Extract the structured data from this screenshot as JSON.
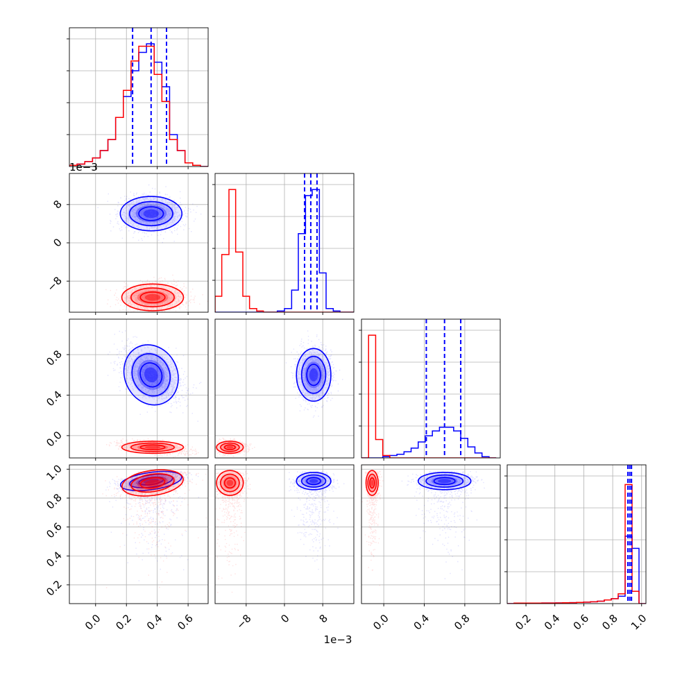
{
  "chart_data": {
    "type": "corner",
    "grid": true,
    "colors": {
      "series_a": "#0000ff",
      "series_b": "#ff0000",
      "quantiles": "#0000ff"
    },
    "parameters": [
      {
        "id": "p1",
        "range": [
          -0.00017,
          0.00073
        ]
      },
      {
        "id": "p2",
        "range": [
          -0.0145,
          0.0145
        ]
      },
      {
        "id": "p3",
        "range": [
          -0.22,
          1.15
        ]
      },
      {
        "id": "p4",
        "range": [
          0.07,
          1.03
        ]
      }
    ],
    "offset_texts": [
      {
        "panel": "1,0",
        "text": "1e−3"
      },
      {
        "panel": "bottom-p2",
        "text": "1e−3"
      }
    ],
    "x_tick_labels": {
      "p1": {
        "values": [
          0.0,
          0.0002,
          0.0004,
          0.0006
        ],
        "labels": [
          "0.0",
          "0.2",
          "0.4",
          "0.6"
        ]
      },
      "p2": {
        "values": [
          -0.008,
          0.0,
          0.008
        ],
        "labels": [
          "−8",
          "0",
          "8"
        ]
      },
      "p3": {
        "values": [
          0.0,
          0.4,
          0.8
        ],
        "labels": [
          "0.0",
          "0.4",
          "0.8"
        ]
      },
      "p4": {
        "values": [
          0.2,
          0.4,
          0.6,
          0.8,
          1.0
        ],
        "labels": [
          "0.2",
          "0.4",
          "0.6",
          "0.8",
          "1.0"
        ]
      }
    },
    "y_tick_labels": {
      "p2": {
        "values": [
          -0.008,
          0.0,
          0.008
        ],
        "labels": [
          "−8",
          "0",
          "8"
        ]
      },
      "p3": {
        "values": [
          0.0,
          0.4,
          0.8
        ],
        "labels": [
          "0.0",
          "0.4",
          "0.8"
        ]
      },
      "p4": {
        "values": [
          0.2,
          0.4,
          0.6,
          0.8,
          1.0
        ],
        "labels": [
          "0.2",
          "0.4",
          "0.6",
          "0.8",
          "1.0"
        ]
      }
    },
    "series": [
      {
        "color": "#0000ff",
        "means": [
          0.00036,
          0.0061,
          0.6,
          0.918
        ],
        "sds": [
          0.0001,
          0.0018,
          0.13,
          0.03
        ],
        "quantiles": {
          "p1": [
            0.00024,
            0.00036,
            0.00046
          ],
          "p2": [
            0.0042,
            0.0055,
            0.0068
          ],
          "p3": [
            0.42,
            0.6,
            0.76
          ],
          "p4": [
            0.905,
            0.918,
            0.93
          ]
        },
        "histograms": {
          "p1": {
            "edges": [
              -0.00017,
              -0.00012,
              -7e-05,
              -2e-05,
              3e-05,
              8e-05,
              0.00013,
              0.00018,
              0.00023,
              0.00028,
              0.00033,
              0.00038,
              0.00043,
              0.00048,
              0.00053,
              0.00058,
              0.00063,
              0.00068,
              0.00073
            ],
            "counts": [
              0.01,
              0.02,
              0.04,
              0.07,
              0.13,
              0.22,
              0.4,
              0.57,
              0.78,
              0.93,
              1.0,
              0.85,
              0.65,
              0.26,
              0.13,
              0.03,
              0.01,
              0.0
            ]
          },
          "p2": {
            "edges": [
              -0.0145,
              -0.0131,
              -0.0116,
              -0.0102,
              -0.0087,
              -0.0073,
              -0.0058,
              -0.0044,
              -0.0029,
              -0.0015,
              0.0,
              0.0015,
              0.0029,
              0.0044,
              0.0058,
              0.0073,
              0.0087,
              0.0102,
              0.0116,
              0.0131,
              0.0145
            ],
            "counts": [
              0,
              0,
              0,
              0,
              0,
              0,
              0,
              0,
              0,
              0.01,
              0.03,
              0.18,
              0.64,
              0.95,
              1.0,
              0.32,
              0.03,
              0.01,
              0,
              0
            ]
          },
          "p3": {
            "edges": [
              -0.22,
              -0.15,
              -0.08,
              -0.01,
              0.06,
              0.13,
              0.2,
              0.27,
              0.34,
              0.41,
              0.48,
              0.55,
              0.62,
              0.69,
              0.76,
              0.83,
              0.9,
              0.97,
              1.04,
              1.11
            ],
            "counts": [
              0,
              0,
              0,
              0.01,
              0.02,
              0.03,
              0.05,
              0.08,
              0.13,
              0.18,
              0.22,
              0.25,
              0.25,
              0.22,
              0.16,
              0.09,
              0.04,
              0.01,
              0.0
            ]
          },
          "p4": {
            "edges": [
              0.07,
              0.118,
              0.166,
              0.214,
              0.262,
              0.31,
              0.358,
              0.406,
              0.454,
              0.502,
              0.55,
              0.598,
              0.646,
              0.694,
              0.742,
              0.79,
              0.838,
              0.886,
              0.934,
              0.982,
              1.03
            ],
            "counts": [
              0,
              0.004,
              0.004,
              0.004,
              0.004,
              0.005,
              0.005,
              0.006,
              0.007,
              0.008,
              0.01,
              0.012,
              0.015,
              0.02,
              0.03,
              0.04,
              0.06,
              0.55,
              0.45,
              0.0
            ]
          }
        }
      },
      {
        "color": "#ff0000",
        "means": [
          0.00037,
          -0.0114,
          -0.115,
          0.905
        ],
        "sds": [
          0.0001,
          0.0014,
          0.03,
          0.05
        ],
        "histograms": {
          "p1": {
            "edges": [
              -0.00017,
              -0.00012,
              -7e-05,
              -2e-05,
              3e-05,
              8e-05,
              0.00013,
              0.00018,
              0.00023,
              0.00028,
              0.00033,
              0.00038,
              0.00043,
              0.00048,
              0.00053,
              0.00058,
              0.00063,
              0.00068,
              0.00073
            ],
            "counts": [
              0.01,
              0.02,
              0.04,
              0.07,
              0.13,
              0.22,
              0.4,
              0.62,
              0.86,
              0.98,
              0.98,
              0.75,
              0.53,
              0.22,
              0.13,
              0.03,
              0.01,
              0.0
            ]
          },
          "p2": {
            "edges": [
              -0.0145,
              -0.0131,
              -0.0116,
              -0.0102,
              -0.0087,
              -0.0073,
              -0.0058,
              -0.0044,
              -0.0029,
              -0.0015,
              0.0,
              0.0015,
              0.0029,
              0.0044,
              0.0058,
              0.0073,
              0.0087,
              0.0102,
              0.0116,
              0.0131,
              0.0145
            ],
            "counts": [
              0.13,
              0.47,
              1.0,
              0.49,
              0.13,
              0.03,
              0.01,
              0,
              0,
              0,
              0,
              0,
              0,
              0,
              0,
              0,
              0,
              0,
              0,
              0
            ]
          },
          "p3": {
            "edges": [
              -0.22,
              -0.15,
              -0.08,
              -0.01,
              0.06,
              0.13,
              0.2,
              0.27,
              0.34,
              0.41,
              0.48,
              0.55,
              0.62,
              0.69,
              0.76,
              0.83,
              0.9,
              0.97,
              1.04,
              1.11
            ],
            "counts": [
              0.0,
              1.0,
              0.15,
              0.02,
              0.0,
              0,
              0,
              0,
              0,
              0,
              0,
              0,
              0,
              0,
              0,
              0,
              0,
              0,
              0
            ]
          },
          "p4": {
            "edges": [
              0.07,
              0.118,
              0.166,
              0.214,
              0.262,
              0.31,
              0.358,
              0.406,
              0.454,
              0.502,
              0.55,
              0.598,
              0.646,
              0.694,
              0.742,
              0.79,
              0.838,
              0.886,
              0.934,
              0.982,
              1.03
            ],
            "counts": [
              0,
              0.004,
              0.004,
              0.004,
              0.004,
              0.005,
              0.005,
              0.006,
              0.007,
              0.008,
              0.01,
              0.012,
              0.015,
              0.02,
              0.03,
              0.04,
              0.08,
              0.97,
              0.1,
              0.0
            ]
          }
        }
      }
    ]
  }
}
